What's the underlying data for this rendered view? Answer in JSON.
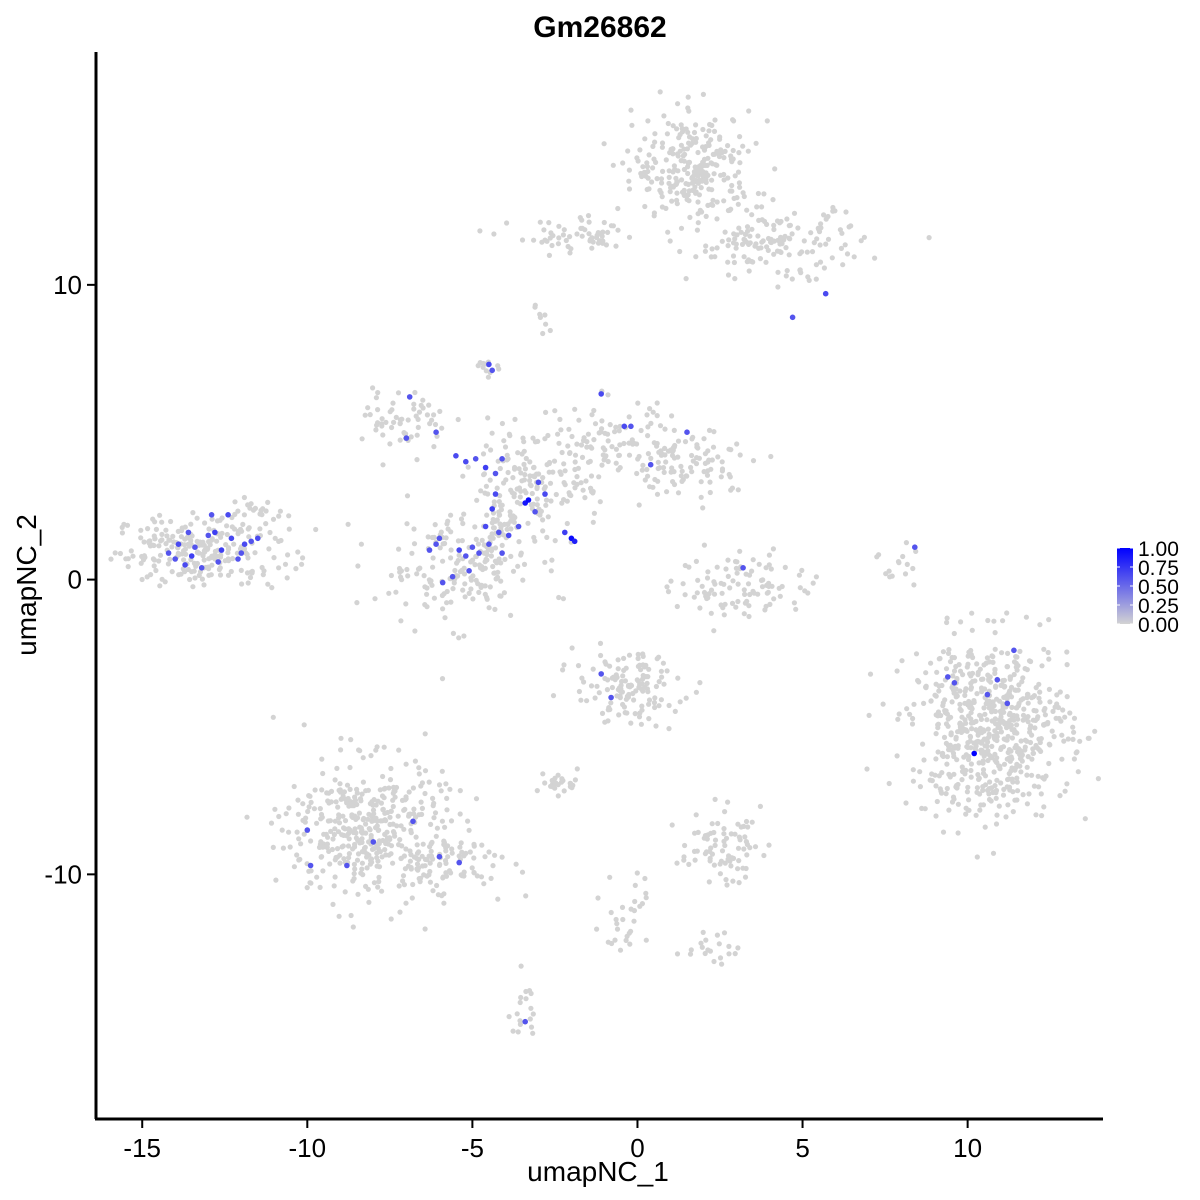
{
  "chart_data": {
    "type": "scatter",
    "title": "Gm26862",
    "xlabel": "umapNC_1",
    "ylabel": "umapNC_2",
    "xlim": [
      -16.4,
      14.1
    ],
    "ylim": [
      -18.3,
      17.9
    ],
    "xticks": [
      -15,
      -10,
      -5,
      0,
      5,
      10
    ],
    "xtick_labels": [
      "-15",
      "-10",
      "-5",
      "0",
      "5",
      "10"
    ],
    "yticks": [
      -10,
      0,
      10
    ],
    "ytick_labels": [
      "-10",
      "0",
      "10"
    ],
    "grid": false,
    "legend_position": "right",
    "colors": {
      "low": "#d3d3d3",
      "high": "#0000ff",
      "axis": "#000000"
    },
    "colorbar": {
      "min": 0,
      "max": 1,
      "ticks": [
        1.0,
        0.75,
        0.5,
        0.25,
        0.0
      ],
      "tick_labels": [
        "1.00",
        "0.75",
        "0.50",
        "0.25",
        "0.00"
      ]
    },
    "clusters": [
      {
        "cx": -13.2,
        "cy": 1.0,
        "sx": 1.3,
        "sy": 0.6,
        "n": 240
      },
      {
        "cx": -11.6,
        "cy": 2.2,
        "sx": 0.5,
        "sy": 0.3,
        "n": 20
      },
      {
        "cx": -5.5,
        "cy": 0.4,
        "sx": 1.2,
        "sy": 0.9,
        "n": 170
      },
      {
        "cx": -4.2,
        "cy": 2.0,
        "sx": 0.5,
        "sy": 1.0,
        "n": 70
      },
      {
        "cx": -7.0,
        "cy": 5.4,
        "sx": 0.6,
        "sy": 0.5,
        "n": 60
      },
      {
        "cx": -3.2,
        "cy": 3.2,
        "sx": 0.9,
        "sy": 0.8,
        "n": 120
      },
      {
        "cx": -1.0,
        "cy": 4.6,
        "sx": 1.0,
        "sy": 0.8,
        "n": 90
      },
      {
        "cx": 1.5,
        "cy": 4.0,
        "sx": 1.2,
        "sy": 0.6,
        "n": 110
      },
      {
        "cx": 1.7,
        "cy": 14.0,
        "sx": 0.9,
        "sy": 0.9,
        "n": 260
      },
      {
        "cx": 4.2,
        "cy": 11.4,
        "sx": 1.3,
        "sy": 0.6,
        "n": 150
      },
      {
        "cx": -1.8,
        "cy": 11.6,
        "sx": 1.0,
        "sy": 0.3,
        "n": 60
      },
      {
        "cx": 10.7,
        "cy": -5.0,
        "sx": 1.2,
        "sy": 1.5,
        "n": 650
      },
      {
        "cx": -8.2,
        "cy": -8.5,
        "sx": 1.2,
        "sy": 1.2,
        "n": 420
      },
      {
        "cx": -5.7,
        "cy": -9.6,
        "sx": 1.0,
        "sy": 0.5,
        "n": 80
      },
      {
        "cx": -0.3,
        "cy": -3.7,
        "sx": 0.8,
        "sy": 0.6,
        "n": 130
      },
      {
        "cx": 2.5,
        "cy": -9.0,
        "sx": 0.6,
        "sy": 0.6,
        "n": 80
      },
      {
        "cx": 3.2,
        "cy": -0.2,
        "sx": 1.0,
        "sy": 0.6,
        "n": 100
      },
      {
        "cx": -2.4,
        "cy": -6.9,
        "sx": 0.3,
        "sy": 0.2,
        "n": 25
      },
      {
        "cx": -0.3,
        "cy": -11.3,
        "sx": 0.4,
        "sy": 0.8,
        "n": 30
      },
      {
        "cx": 2.3,
        "cy": -12.5,
        "sx": 0.4,
        "sy": 0.3,
        "n": 20
      },
      {
        "cx": -3.5,
        "cy": -14.6,
        "sx": 0.2,
        "sy": 0.6,
        "n": 18
      },
      {
        "cx": 8.0,
        "cy": 0.5,
        "sx": 0.3,
        "sy": 0.4,
        "n": 15
      },
      {
        "cx": -4.6,
        "cy": 7.3,
        "sx": 0.2,
        "sy": 0.2,
        "n": 12
      },
      {
        "cx": -2.8,
        "cy": 8.8,
        "sx": 0.2,
        "sy": 0.3,
        "n": 8
      }
    ],
    "expressing_cells": [
      {
        "x": -13.9,
        "y": 1.2,
        "v": 0.65
      },
      {
        "x": -13.5,
        "y": 0.8,
        "v": 0.7
      },
      {
        "x": -13.0,
        "y": 1.5,
        "v": 0.6
      },
      {
        "x": -12.6,
        "y": 1.0,
        "v": 0.7
      },
      {
        "x": -12.3,
        "y": 1.4,
        "v": 0.65
      },
      {
        "x": -12.0,
        "y": 0.9,
        "v": 0.6
      },
      {
        "x": -11.7,
        "y": 1.3,
        "v": 0.6
      },
      {
        "x": -13.7,
        "y": 0.5,
        "v": 0.65
      },
      {
        "x": -14.0,
        "y": 0.7,
        "v": 0.6
      },
      {
        "x": -12.9,
        "y": 2.2,
        "v": 0.6
      },
      {
        "x": -12.4,
        "y": 2.2,
        "v": 0.65
      },
      {
        "x": -13.2,
        "y": 0.4,
        "v": 0.6
      },
      {
        "x": -12.8,
        "y": 1.6,
        "v": 0.7
      },
      {
        "x": -11.9,
        "y": 1.2,
        "v": 0.65
      },
      {
        "x": -13.4,
        "y": 1.1,
        "v": 0.6
      },
      {
        "x": -12.1,
        "y": 0.7,
        "v": 0.6
      },
      {
        "x": -11.5,
        "y": 1.4,
        "v": 0.65
      },
      {
        "x": -13.6,
        "y": 1.6,
        "v": 0.6
      },
      {
        "x": -12.7,
        "y": 0.6,
        "v": 0.6
      },
      {
        "x": -14.2,
        "y": 0.9,
        "v": 0.6
      },
      {
        "x": -4.5,
        "y": 7.3,
        "v": 0.65
      },
      {
        "x": -4.4,
        "y": 7.1,
        "v": 0.6
      },
      {
        "x": -6.9,
        "y": 6.2,
        "v": 0.6
      },
      {
        "x": -7.0,
        "y": 4.8,
        "v": 0.6
      },
      {
        "x": -6.1,
        "y": 5.0,
        "v": 0.6
      },
      {
        "x": -5.5,
        "y": 4.2,
        "v": 0.65
      },
      {
        "x": -5.2,
        "y": 4.0,
        "v": 0.65
      },
      {
        "x": -4.9,
        "y": 4.1,
        "v": 0.6
      },
      {
        "x": -4.6,
        "y": 3.8,
        "v": 0.7
      },
      {
        "x": -4.3,
        "y": 3.6,
        "v": 0.6
      },
      {
        "x": -4.1,
        "y": 4.1,
        "v": 0.6
      },
      {
        "x": -4.3,
        "y": 2.9,
        "v": 0.65
      },
      {
        "x": -4.4,
        "y": 2.4,
        "v": 0.7
      },
      {
        "x": -4.6,
        "y": 1.8,
        "v": 0.65
      },
      {
        "x": -4.2,
        "y": 1.6,
        "v": 0.6
      },
      {
        "x": -3.9,
        "y": 1.5,
        "v": 0.65
      },
      {
        "x": -3.6,
        "y": 1.8,
        "v": 0.6
      },
      {
        "x": -3.4,
        "y": 2.6,
        "v": 0.9
      },
      {
        "x": -3.3,
        "y": 2.7,
        "v": 0.95
      },
      {
        "x": -3.0,
        "y": 3.3,
        "v": 0.65
      },
      {
        "x": -3.1,
        "y": 2.3,
        "v": 0.6
      },
      {
        "x": -2.8,
        "y": 2.9,
        "v": 0.65
      },
      {
        "x": -2.2,
        "y": 1.6,
        "v": 0.7
      },
      {
        "x": -2.0,
        "y": 1.4,
        "v": 0.95
      },
      {
        "x": -1.9,
        "y": 1.3,
        "v": 0.85
      },
      {
        "x": -6.0,
        "y": 1.4,
        "v": 0.6
      },
      {
        "x": -6.1,
        "y": 1.2,
        "v": 0.6
      },
      {
        "x": -5.4,
        "y": 1.0,
        "v": 0.65
      },
      {
        "x": -5.2,
        "y": 0.8,
        "v": 0.6
      },
      {
        "x": -5.0,
        "y": 1.1,
        "v": 0.6
      },
      {
        "x": -4.8,
        "y": 0.9,
        "v": 0.6
      },
      {
        "x": -4.1,
        "y": 0.9,
        "v": 0.6
      },
      {
        "x": -4.5,
        "y": 1.2,
        "v": 0.6
      },
      {
        "x": -6.3,
        "y": 1.0,
        "v": 0.6
      },
      {
        "x": -5.6,
        "y": 0.1,
        "v": 0.6
      },
      {
        "x": -5.9,
        "y": -0.1,
        "v": 0.6
      },
      {
        "x": -5.1,
        "y": 0.3,
        "v": 0.6
      },
      {
        "x": -1.1,
        "y": 6.3,
        "v": 0.65
      },
      {
        "x": -0.4,
        "y": 5.2,
        "v": 0.65
      },
      {
        "x": -0.2,
        "y": 5.2,
        "v": 0.6
      },
      {
        "x": 1.5,
        "y": 5.0,
        "v": 0.6
      },
      {
        "x": 0.4,
        "y": 3.9,
        "v": 0.6
      },
      {
        "x": 3.2,
        "y": 0.4,
        "v": 0.6
      },
      {
        "x": 8.4,
        "y": 1.1,
        "v": 0.6
      },
      {
        "x": 5.7,
        "y": 9.7,
        "v": 0.65
      },
      {
        "x": 4.7,
        "y": 8.9,
        "v": 0.6
      },
      {
        "x": 9.4,
        "y": -3.3,
        "v": 0.6
      },
      {
        "x": 9.6,
        "y": -3.5,
        "v": 0.6
      },
      {
        "x": 10.6,
        "y": -3.9,
        "v": 0.6
      },
      {
        "x": 10.9,
        "y": -3.4,
        "v": 0.6
      },
      {
        "x": 11.4,
        "y": -2.4,
        "v": 0.6
      },
      {
        "x": 11.2,
        "y": -4.2,
        "v": 0.6
      },
      {
        "x": 10.2,
        "y": -5.9,
        "v": 1.0
      },
      {
        "x": -1.1,
        "y": -3.2,
        "v": 0.6
      },
      {
        "x": -0.8,
        "y": -4.0,
        "v": 0.6
      },
      {
        "x": -10.0,
        "y": -8.5,
        "v": 0.6
      },
      {
        "x": -9.9,
        "y": -9.7,
        "v": 0.6
      },
      {
        "x": -8.8,
        "y": -9.7,
        "v": 0.6
      },
      {
        "x": -8.0,
        "y": -8.9,
        "v": 0.6
      },
      {
        "x": -6.8,
        "y": -8.2,
        "v": 0.6
      },
      {
        "x": -6.0,
        "y": -9.4,
        "v": 0.6
      },
      {
        "x": -5.4,
        "y": -9.6,
        "v": 0.6
      },
      {
        "x": -3.4,
        "y": -15.0,
        "v": 0.6
      }
    ]
  }
}
